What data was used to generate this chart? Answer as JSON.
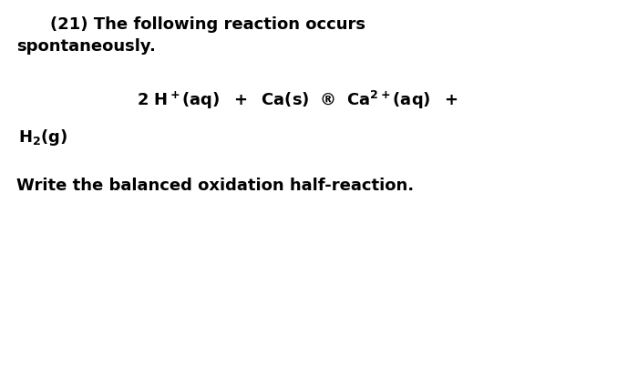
{
  "background_color": "#ffffff",
  "text_color": "#000000",
  "title_line1": "(21) The following reaction occurs",
  "title_line2": "spontaneously.",
  "eq_line1": "2 H⁺(aq)  +  Ca(s)  ®  Ca²⁺(aq)  +",
  "eq_line2": "H₂(g)",
  "question": "Write the balanced oxidation half-reaction.",
  "font_size_title": 13,
  "font_size_eq": 13,
  "font_size_question": 13,
  "fig_width": 7.0,
  "fig_height": 4.14,
  "dpi": 100
}
